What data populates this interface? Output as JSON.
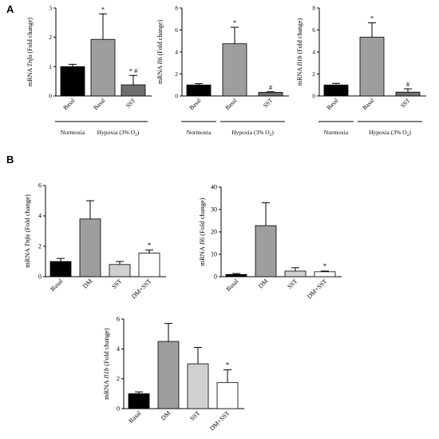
{
  "figure": {
    "panel_labels": [
      "A",
      "B"
    ]
  },
  "chart_data": [
    {
      "type": "bar",
      "panel": "A",
      "ylabel_pre": "mRNA ",
      "ylabel_gene": "Tnfα",
      "ylabel_post": " (Fold change)",
      "ylim": [
        0,
        3
      ],
      "ticks": [
        "0",
        "1",
        "2",
        "3"
      ],
      "categories": [
        "Basal",
        "Basal",
        "SST"
      ],
      "values": [
        1.0,
        1.93,
        0.38
      ],
      "errors": [
        0.08,
        0.87,
        0.32
      ],
      "fills": [
        "#000000",
        "#9e9e9e",
        "#6e6e6e"
      ],
      "sig": [
        "",
        "*",
        "* #"
      ],
      "groups": [
        {
          "label": "Normoxia",
          "from": 0,
          "to": 0
        },
        {
          "label": "Hypoxia (3% O",
          "sub": "2",
          "tail": ")",
          "from": 1,
          "to": 2
        }
      ]
    },
    {
      "type": "bar",
      "panel": "A",
      "ylabel_pre": "mRNA ",
      "ylabel_gene": "Il6",
      "ylabel_post": " (Fold change)",
      "ylim": [
        0,
        8
      ],
      "ticks": [
        "0",
        "2",
        "4",
        "6",
        "8"
      ],
      "categories": [
        "Basal",
        "Basal",
        "SST"
      ],
      "values": [
        1.0,
        4.75,
        0.33
      ],
      "errors": [
        0.12,
        1.5,
        0.05
      ],
      "fills": [
        "#000000",
        "#9e9e9e",
        "#6e6e6e"
      ],
      "sig": [
        "",
        "*",
        "#"
      ],
      "groups": [
        {
          "label": "Normoxia",
          "from": 0,
          "to": 0
        },
        {
          "label": "Hypoxia (3% O",
          "sub": "2",
          "tail": ")",
          "from": 1,
          "to": 2
        }
      ]
    },
    {
      "type": "bar",
      "panel": "A",
      "ylabel_pre": "mRNA ",
      "ylabel_gene": "Il1b",
      "ylabel_post": " (Fold change)",
      "ylim": [
        0,
        8
      ],
      "ticks": [
        "0",
        "2",
        "4",
        "6",
        "8"
      ],
      "categories": [
        "Basal",
        "Basal",
        "SST"
      ],
      "values": [
        1.0,
        5.35,
        0.35
      ],
      "errors": [
        0.15,
        1.3,
        0.3
      ],
      "fills": [
        "#000000",
        "#9e9e9e",
        "#6e6e6e"
      ],
      "sig": [
        "",
        "*",
        "#"
      ],
      "groups": [
        {
          "label": "Normoxia",
          "from": 0,
          "to": 0
        },
        {
          "label": "Hypoxia (3% O",
          "sub": "2",
          "tail": ")",
          "from": 1,
          "to": 2
        }
      ]
    },
    {
      "type": "bar",
      "panel": "B",
      "ylabel_pre": "mRNA ",
      "ylabel_gene": "Tnfα",
      "ylabel_post": " (Fold change)",
      "ylim": [
        0,
        6
      ],
      "ticks": [
        "0",
        "2",
        "4",
        "6"
      ],
      "categories": [
        "Basal",
        "DM",
        "SST",
        "DM+SST"
      ],
      "values": [
        1.0,
        3.8,
        0.8,
        1.55
      ],
      "errors": [
        0.2,
        1.2,
        0.2,
        0.2
      ],
      "fills": [
        "#000000",
        "#9e9e9e",
        "#d0d0d0",
        "#ffffff"
      ],
      "sig": [
        "",
        "",
        "",
        "*"
      ],
      "groups": []
    },
    {
      "type": "bar",
      "panel": "B",
      "ylabel_pre": "mRNA ",
      "ylabel_gene": "Il6",
      "ylabel_post": " (Fold change)",
      "ylim": [
        0,
        40
      ],
      "ticks": [
        "0",
        "10",
        "20",
        "30",
        "40"
      ],
      "categories": [
        "Basal",
        "DM",
        "SST",
        "DM+SST"
      ],
      "values": [
        1.0,
        22.8,
        2.5,
        2.2
      ],
      "errors": [
        0.4,
        10.2,
        1.5,
        0.3
      ],
      "fills": [
        "#000000",
        "#9e9e9e",
        "#d0d0d0",
        "#ffffff"
      ],
      "sig": [
        "",
        "",
        "",
        "*"
      ],
      "groups": []
    },
    {
      "type": "bar",
      "panel": "B",
      "ylabel_pre": "mRNA ",
      "ylabel_gene": "Il1b",
      "ylabel_post": " (Fold change)",
      "ylim": [
        0,
        6
      ],
      "ticks": [
        "0",
        "2",
        "4",
        "6"
      ],
      "categories": [
        "Basal",
        "DM",
        "SST",
        "DM+SST"
      ],
      "values": [
        1.0,
        4.5,
        3.0,
        1.75
      ],
      "errors": [
        0.12,
        1.2,
        1.1,
        0.85
      ],
      "fills": [
        "#000000",
        "#9e9e9e",
        "#d0d0d0",
        "#ffffff"
      ],
      "sig": [
        "",
        "",
        "",
        "*"
      ],
      "groups": []
    }
  ]
}
